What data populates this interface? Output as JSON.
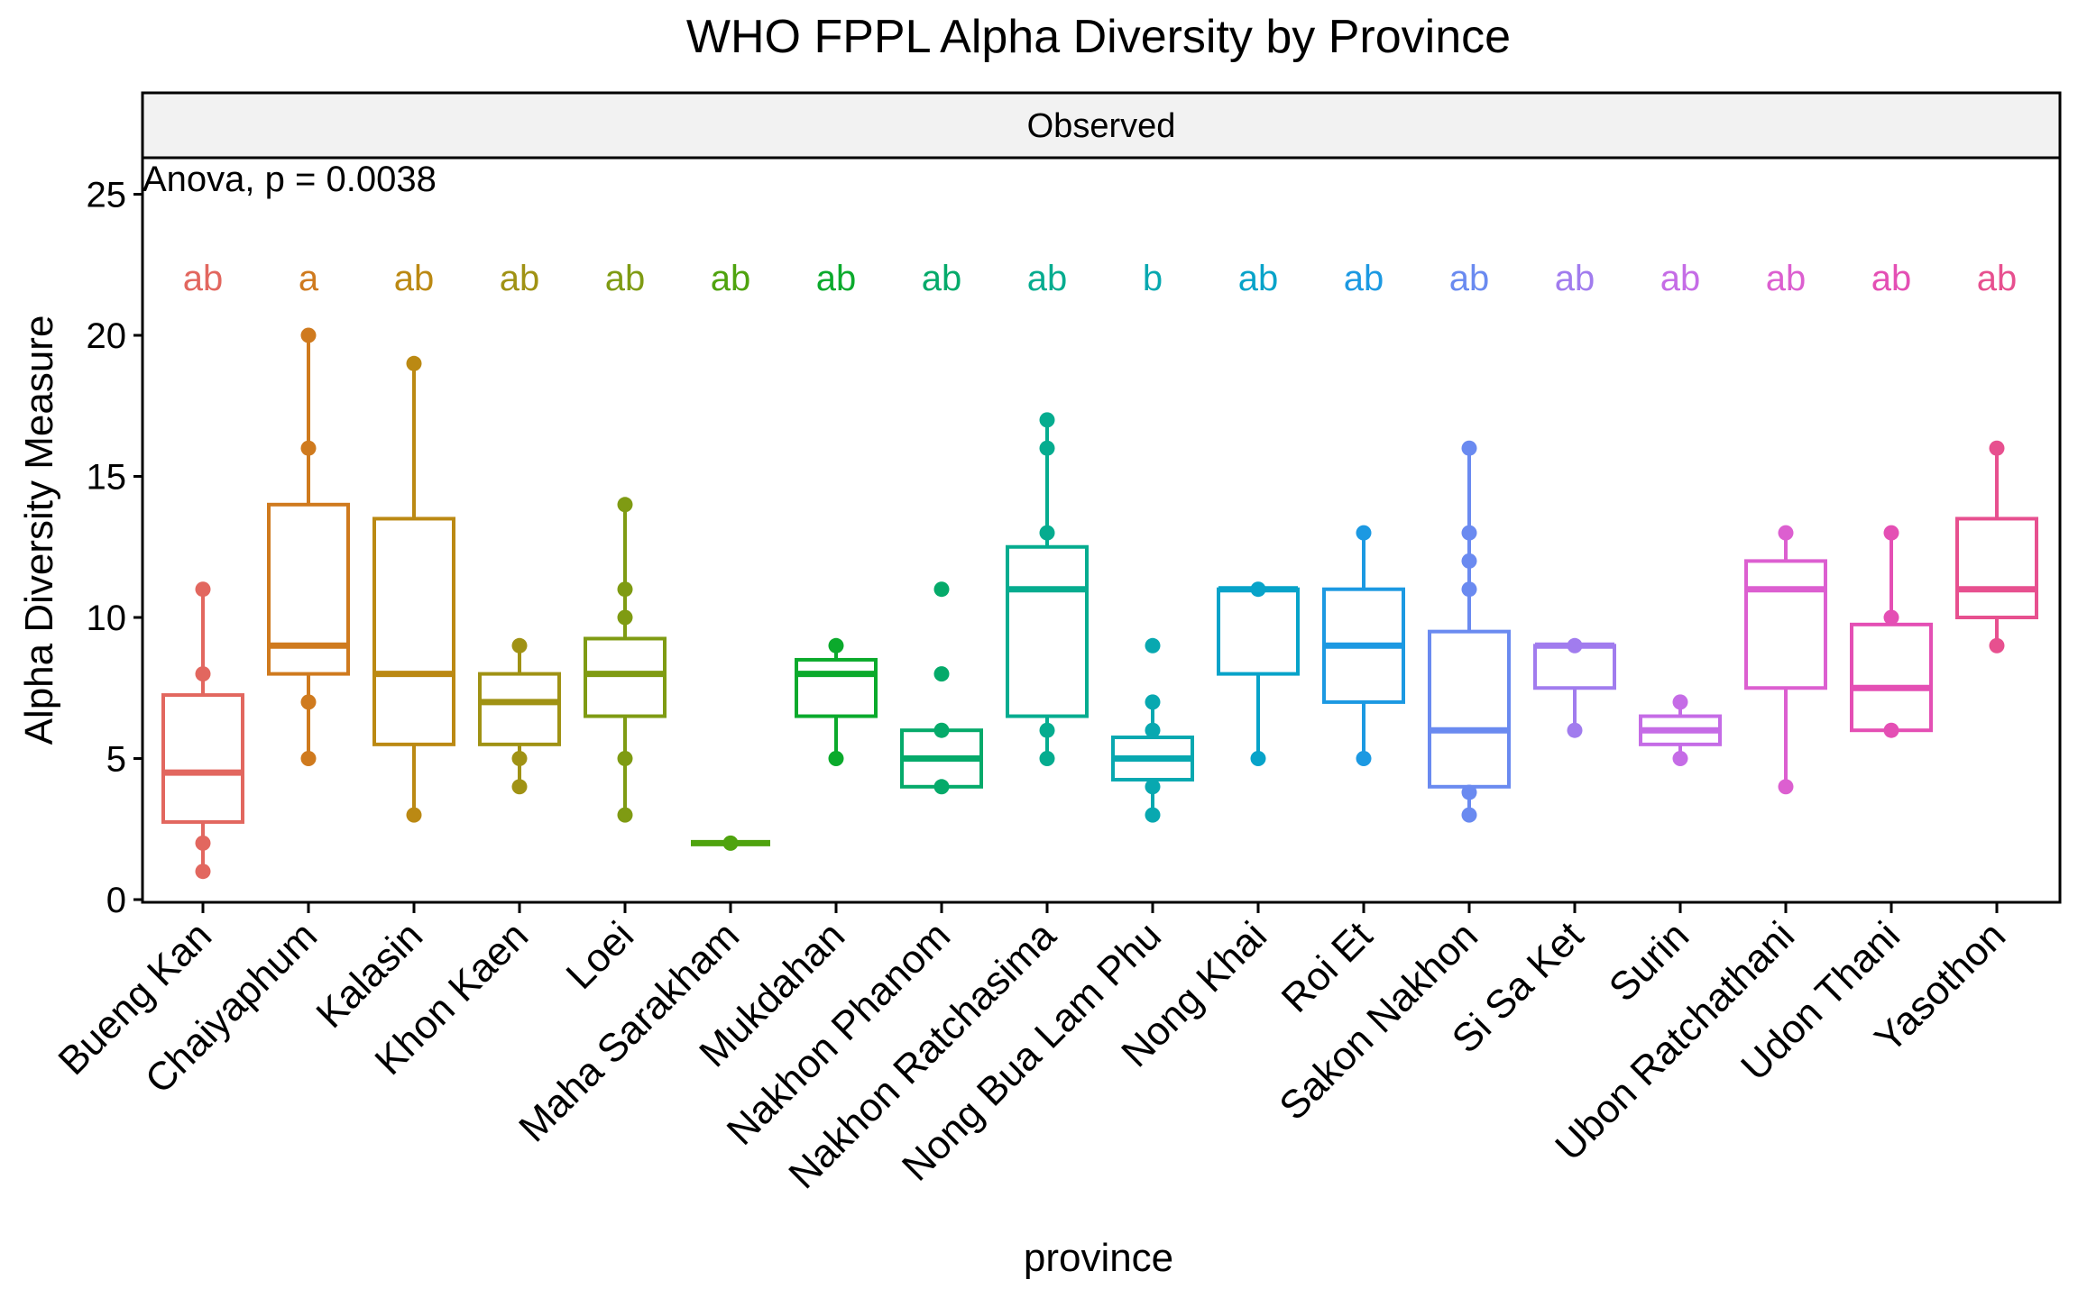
{
  "chart_data": {
    "type": "box",
    "title": "WHO FPPL Alpha Diversity by Province",
    "facet_label": "Observed",
    "annotation": "Anova, p = 0.0038",
    "xlabel": "province",
    "ylabel": "Alpha Diversity Measure",
    "ylim": [
      0,
      26
    ],
    "y_ticks": [
      0,
      5,
      10,
      15,
      20,
      25
    ],
    "grid": false,
    "legend": "none",
    "categories": [
      "Bueng Kan",
      "Chaiyaphum",
      "Kalasin",
      "Khon Kaen",
      "Loei",
      "Maha Sarakham",
      "Mukdahan",
      "Nakhon Phanom",
      "Nakhon Ratchasima",
      "Nong Bua Lam Phu",
      "Nong Khai",
      "Roi Et",
      "Sakon Nakhon",
      "Si Sa Ket",
      "Surin",
      "Ubon Ratchathani",
      "Udon Thani",
      "Yasothon"
    ],
    "group_letters": [
      "ab",
      "a",
      "ab",
      "ab",
      "ab",
      "ab",
      "ab",
      "ab",
      "ab",
      "b",
      "ab",
      "ab",
      "ab",
      "ab",
      "ab",
      "ab",
      "ab",
      "ab"
    ],
    "colors": [
      "#E2675F",
      "#CF7A1E",
      "#BB8913",
      "#A09214",
      "#7F9B13",
      "#4FA30E",
      "#0BAA2C",
      "#05AA6A",
      "#05AC8F",
      "#08A8B0",
      "#07A3C9",
      "#1C99E2",
      "#6A8AF0",
      "#A17CEE",
      "#C56CE6",
      "#DC5FD0",
      "#E44FB4",
      "#E7508F"
    ],
    "boxes": [
      {
        "min": 1,
        "q1": 2.75,
        "median": 4.5,
        "q3": 7.25,
        "max": 11,
        "points": [
          1,
          2,
          8,
          11
        ]
      },
      {
        "min": 5,
        "q1": 8,
        "median": 9,
        "q3": 14,
        "max": 20,
        "points": [
          5,
          7,
          16,
          20
        ]
      },
      {
        "min": 3,
        "q1": 5.5,
        "median": 8,
        "q3": 13.5,
        "max": 19,
        "points": [
          3,
          19
        ]
      },
      {
        "min": 4,
        "q1": 5.5,
        "median": 7,
        "q3": 8,
        "max": 9,
        "points": [
          4,
          5,
          9
        ]
      },
      {
        "min": 3,
        "q1": 6.5,
        "median": 8,
        "q3": 9.25,
        "max": 14,
        "points": [
          3,
          5,
          10,
          11,
          14
        ]
      },
      {
        "min": 2,
        "q1": 2,
        "median": 2,
        "q3": 2,
        "max": 2,
        "points": [
          2
        ]
      },
      {
        "min": 5,
        "q1": 6.5,
        "median": 8,
        "q3": 8.5,
        "max": 9,
        "points": [
          5,
          9
        ]
      },
      {
        "min": 4,
        "q1": 4,
        "median": 5,
        "q3": 6,
        "max": 6,
        "points": [
          4,
          6,
          8,
          11
        ]
      },
      {
        "min": 5,
        "q1": 6.5,
        "median": 11,
        "q3": 12.5,
        "max": 17,
        "points": [
          5,
          6,
          13,
          16,
          17
        ]
      },
      {
        "min": 3,
        "q1": 4.25,
        "median": 5,
        "q3": 5.75,
        "max": 7,
        "points": [
          3,
          4,
          6,
          7,
          9
        ]
      },
      {
        "min": 5,
        "q1": 8,
        "median": 11,
        "q3": 11,
        "max": 11,
        "points": [
          5,
          11
        ]
      },
      {
        "min": 5,
        "q1": 7,
        "median": 9,
        "q3": 11,
        "max": 13,
        "points": [
          5,
          13
        ]
      },
      {
        "min": 3,
        "q1": 4,
        "median": 6,
        "q3": 9.5,
        "max": 16,
        "points": [
          3,
          3.8,
          11,
          12,
          13,
          16
        ]
      },
      {
        "min": 6,
        "q1": 7.5,
        "median": 9,
        "q3": 9,
        "max": 9,
        "points": [
          6,
          9
        ]
      },
      {
        "min": 5,
        "q1": 5.5,
        "median": 6,
        "q3": 6.5,
        "max": 7,
        "points": [
          5,
          7
        ]
      },
      {
        "min": 4,
        "q1": 7.5,
        "median": 11,
        "q3": 12,
        "max": 13,
        "points": [
          4,
          13
        ]
      },
      {
        "min": 6,
        "q1": 6,
        "median": 7.5,
        "q3": 9.75,
        "max": 13,
        "points": [
          6,
          10,
          13
        ]
      },
      {
        "min": 9,
        "q1": 10,
        "median": 11,
        "q3": 13.5,
        "max": 16,
        "points": [
          9,
          16
        ]
      }
    ]
  }
}
